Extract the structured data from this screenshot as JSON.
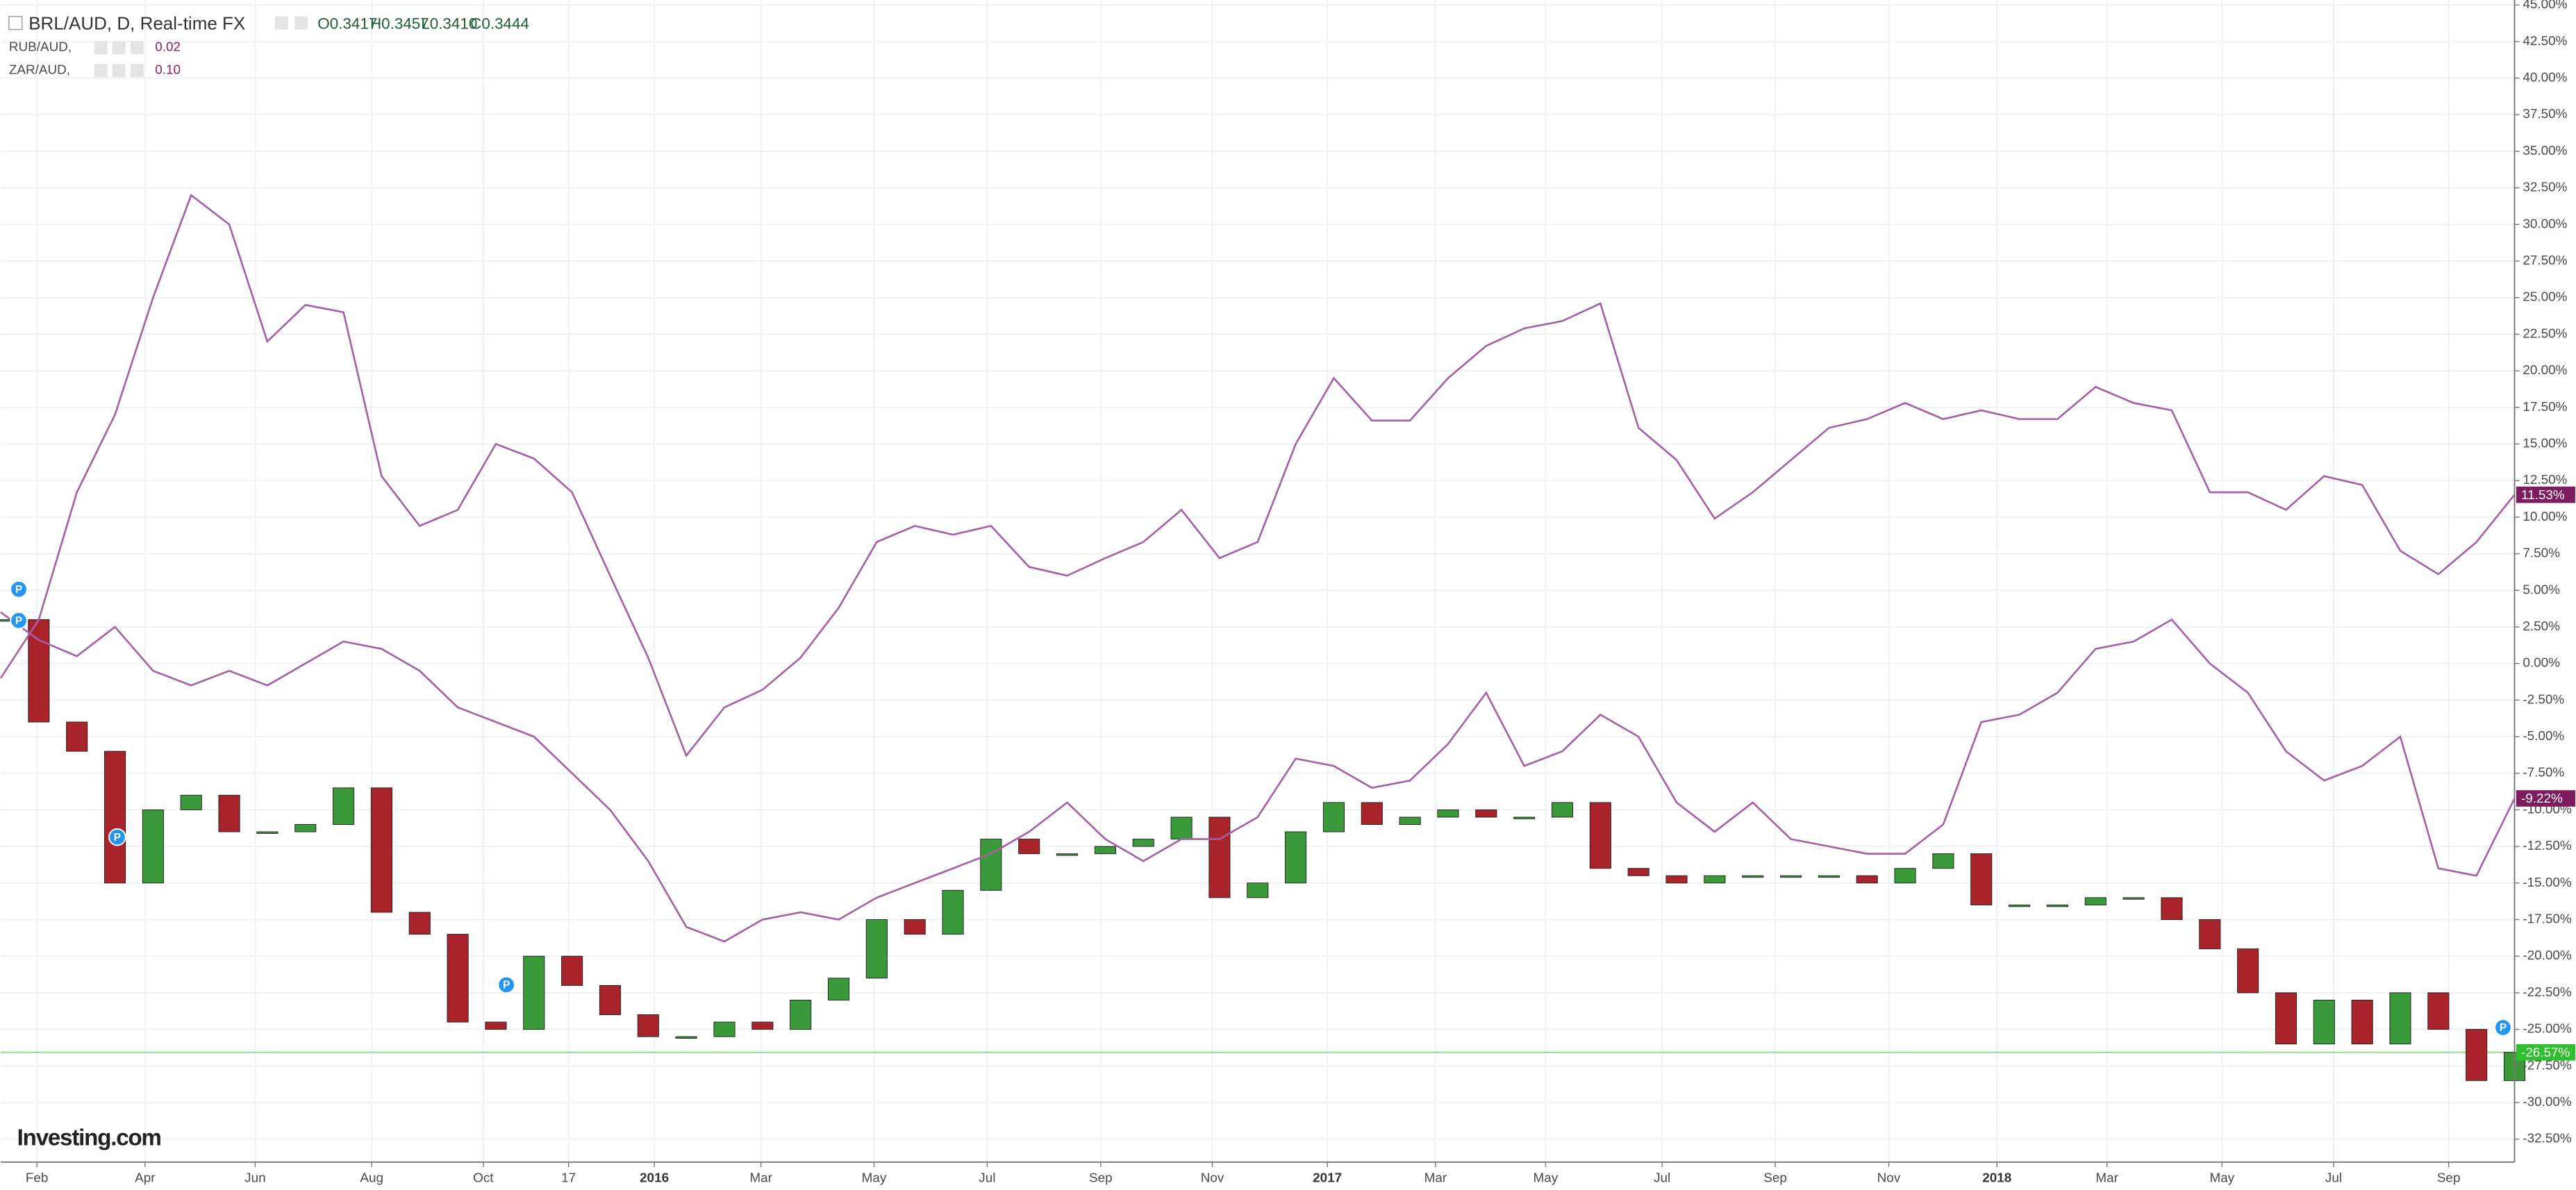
{
  "chart_data": {
    "type": "candlestick",
    "title": "BRL/AUD, D, Real-time FX",
    "ohlc": [
      "O0.3417",
      "H0.3457",
      "L0.3410",
      "C0.3444"
    ],
    "logo": "Investing.com",
    "event_label": "P",
    "grid": true,
    "xlim": [
      0,
      66
    ],
    "xticks": [
      {
        "value": 0.95,
        "label": "Feb"
      },
      {
        "value": 3.79,
        "label": "Apr"
      },
      {
        "value": 6.68,
        "label": "Jun"
      },
      {
        "value": 9.74,
        "label": "Aug"
      },
      {
        "value": 12.67,
        "label": "Oct"
      },
      {
        "value": 14.91,
        "label": "17"
      },
      {
        "value": 17.16,
        "label": "2016"
      },
      {
        "value": 19.96,
        "label": "Mar"
      },
      {
        "value": 22.93,
        "label": "May"
      },
      {
        "value": 25.9,
        "label": "Jul"
      },
      {
        "value": 28.88,
        "label": "Sep"
      },
      {
        "value": 31.81,
        "label": "Nov"
      },
      {
        "value": 34.83,
        "label": "2017"
      },
      {
        "value": 37.67,
        "label": "Mar"
      },
      {
        "value": 40.56,
        "label": "May"
      },
      {
        "value": 43.62,
        "label": "Jul"
      },
      {
        "value": 46.59,
        "label": "Sep"
      },
      {
        "value": 49.57,
        "label": "Nov"
      },
      {
        "value": 52.41,
        "label": "2018"
      },
      {
        "value": 55.3,
        "label": "Mar"
      },
      {
        "value": 58.32,
        "label": "May"
      },
      {
        "value": 61.25,
        "label": "Jul"
      },
      {
        "value": 64.27,
        "label": "Sep"
      }
    ],
    "ylim": [
      -32.5,
      45
    ],
    "yticks": [
      {
        "value": 45,
        "label": "45.00%"
      },
      {
        "value": 42.5,
        "label": "42.50%"
      },
      {
        "value": 40,
        "label": "40.00%"
      },
      {
        "value": 37.5,
        "label": "37.50%"
      },
      {
        "value": 35,
        "label": "35.00%"
      },
      {
        "value": 32.5,
        "label": "32.50%"
      },
      {
        "value": 30,
        "label": "30.00%"
      },
      {
        "value": 27.5,
        "label": "27.50%"
      },
      {
        "value": 25,
        "label": "25.00%"
      },
      {
        "value": 22.5,
        "label": "22.50%"
      },
      {
        "value": 20,
        "label": "20.00%"
      },
      {
        "value": 17.5,
        "label": "17.50%"
      },
      {
        "value": 15,
        "label": "15.00%"
      },
      {
        "value": 12.5,
        "label": "12.50%"
      },
      {
        "value": 10,
        "label": "10.00%"
      },
      {
        "value": 7.5,
        "label": "7.50%"
      },
      {
        "value": 5,
        "label": "5.00%"
      },
      {
        "value": 2.5,
        "label": "2.50%"
      },
      {
        "value": 0,
        "label": "0.00%"
      },
      {
        "value": -2.5,
        "label": "-2.50%"
      },
      {
        "value": -5,
        "label": "-5.00%"
      },
      {
        "value": -7.5,
        "label": "-7.50%"
      },
      {
        "value": -10,
        "label": "-10.00%"
      },
      {
        "value": -12.5,
        "label": "-12.50%"
      },
      {
        "value": -15,
        "label": "-15.00%"
      },
      {
        "value": -17.5,
        "label": "-17.50%"
      },
      {
        "value": -20,
        "label": "-20.00%"
      },
      {
        "value": -22.5,
        "label": "-22.50%"
      },
      {
        "value": -25,
        "label": "-25.00%"
      },
      {
        "value": -27.5,
        "label": "-27.50%"
      },
      {
        "value": -30,
        "label": "-30.00%"
      },
      {
        "value": -32.5,
        "label": "-32.50%"
      }
    ],
    "series": [
      {
        "name": "BRL/AUD",
        "type": "candlestick",
        "up_color": "#3a9a3a",
        "down_color": "#a8242a",
        "color": "#8ed88e",
        "last_label": "-26.57%",
        "values": [
          3,
          -4,
          -6,
          -15,
          -10,
          -9,
          -11.5,
          -11.5,
          -11,
          -8.5,
          -17,
          -18.5,
          -24.5,
          -25,
          -20,
          -22,
          -24,
          -25.5,
          -25.5,
          -24.5,
          -25,
          -23,
          -21.5,
          -17.5,
          -18.5,
          -15.5,
          -12,
          -13,
          -13,
          -12.5,
          -12,
          -10.5,
          -16,
          -15,
          -11.5,
          -9.5,
          -11,
          -10.5,
          -10,
          -10.5,
          -10.5,
          -9.5,
          -14,
          -14.5,
          -15,
          -14.5,
          -14.5,
          -14.5,
          -14.5,
          -15,
          -14,
          -13,
          -16.5,
          -16.5,
          -16.5,
          -16,
          -16,
          -17.5,
          -19.5,
          -22.5,
          -26,
          -23,
          -26,
          -22.5,
          -25,
          -28.5,
          -26.57
        ]
      },
      {
        "name": "RUB/AUD,",
        "type": "line",
        "color": "#a65ea6",
        "badge_color": "#7d1c5e",
        "legend_value": "0.02",
        "last_label": "11.53%",
        "values": [
          -1,
          3,
          11.7,
          17,
          25,
          32,
          30,
          22,
          24.5,
          24,
          12.8,
          9.4,
          10.5,
          15,
          14,
          11.7,
          6,
          0.4,
          -6.3,
          -3,
          -1.8,
          0.4,
          3.8,
          8.3,
          9.4,
          8.8,
          9.4,
          6.6,
          6,
          7.2,
          8.3,
          10.5,
          7.2,
          8.3,
          15,
          19.5,
          16.6,
          16.6,
          19.5,
          21.7,
          22.9,
          23.4,
          24.6,
          16.1,
          13.9,
          9.9,
          11.7,
          13.9,
          16.1,
          16.7,
          17.8,
          16.7,
          17.3,
          16.7,
          16.7,
          18.9,
          17.8,
          17.3,
          11.7,
          11.7,
          10.5,
          12.8,
          12.2,
          7.7,
          6.1,
          8.3,
          11.53
        ]
      },
      {
        "name": "ZAR/AUD,",
        "type": "line",
        "color": "#a65ea6",
        "badge_color": "#7d1c5e",
        "legend_value": "0.10",
        "last_label": "-9.22%",
        "values": [
          3.5,
          1.6,
          0.5,
          2.5,
          -0.5,
          -1.5,
          -0.5,
          -1.5,
          0,
          1.5,
          1,
          -0.5,
          -3,
          -4,
          -5,
          -7.5,
          -10,
          -13.5,
          -18,
          -19,
          -17.5,
          -17,
          -17.5,
          -16,
          -15,
          -14,
          -13,
          -11.5,
          -9.5,
          -12,
          -13.5,
          -12,
          -12,
          -10.5,
          -6.5,
          -7,
          -8.5,
          -8,
          -5.5,
          -2,
          -7,
          -6,
          -3.5,
          -5,
          -9.5,
          -11.5,
          -9.5,
          -12,
          -12.5,
          -13,
          -13,
          -11,
          -4,
          -3.5,
          -2,
          1,
          1.5,
          3,
          0,
          -2,
          -6,
          -8,
          -7,
          -5,
          -14,
          -14.5,
          -9.22
        ]
      }
    ]
  }
}
